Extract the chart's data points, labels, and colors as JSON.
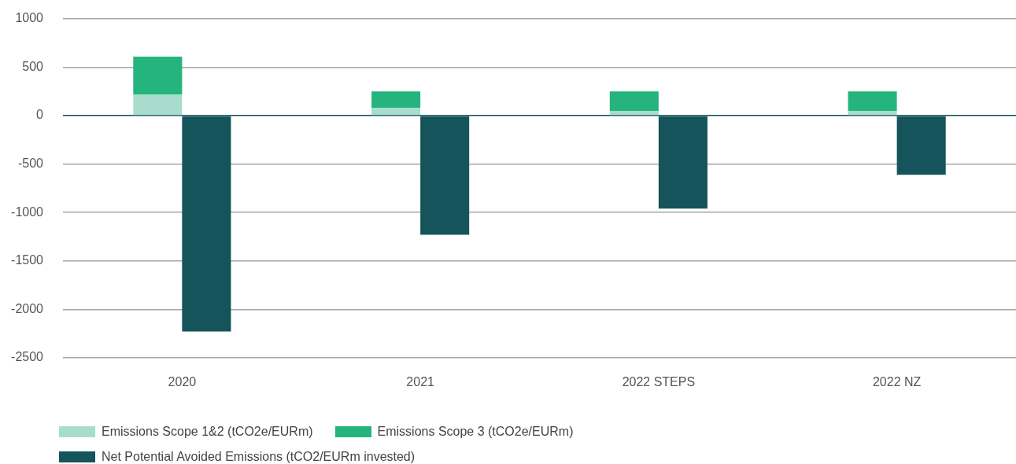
{
  "chart_data": {
    "type": "bar",
    "categories": [
      "2020",
      "2021",
      "2022 STEPS",
      "2022 NZ"
    ],
    "stacked": true,
    "series": [
      {
        "name": "Emissions Scope 1&2 (tCO2e/EURm)",
        "color": "#a8dccd",
        "values": [
          220,
          80,
          50,
          50
        ]
      },
      {
        "name": "Emissions Scope 3 (tCO2e/EURm)",
        "color": "#25b47e",
        "values": [
          390,
          170,
          200,
          200
        ]
      },
      {
        "name": "Net Potential Avoided Emissions (tCO2/EURm invested)",
        "color": "#14545a",
        "values": [
          -2230,
          -1230,
          -960,
          -610
        ]
      }
    ],
    "ylim": [
      -2500,
      1000
    ],
    "yticks": [
      -2500,
      -2000,
      -1500,
      -1000,
      -500,
      0,
      500,
      1000
    ],
    "grid": "y",
    "legend": "bottom"
  }
}
